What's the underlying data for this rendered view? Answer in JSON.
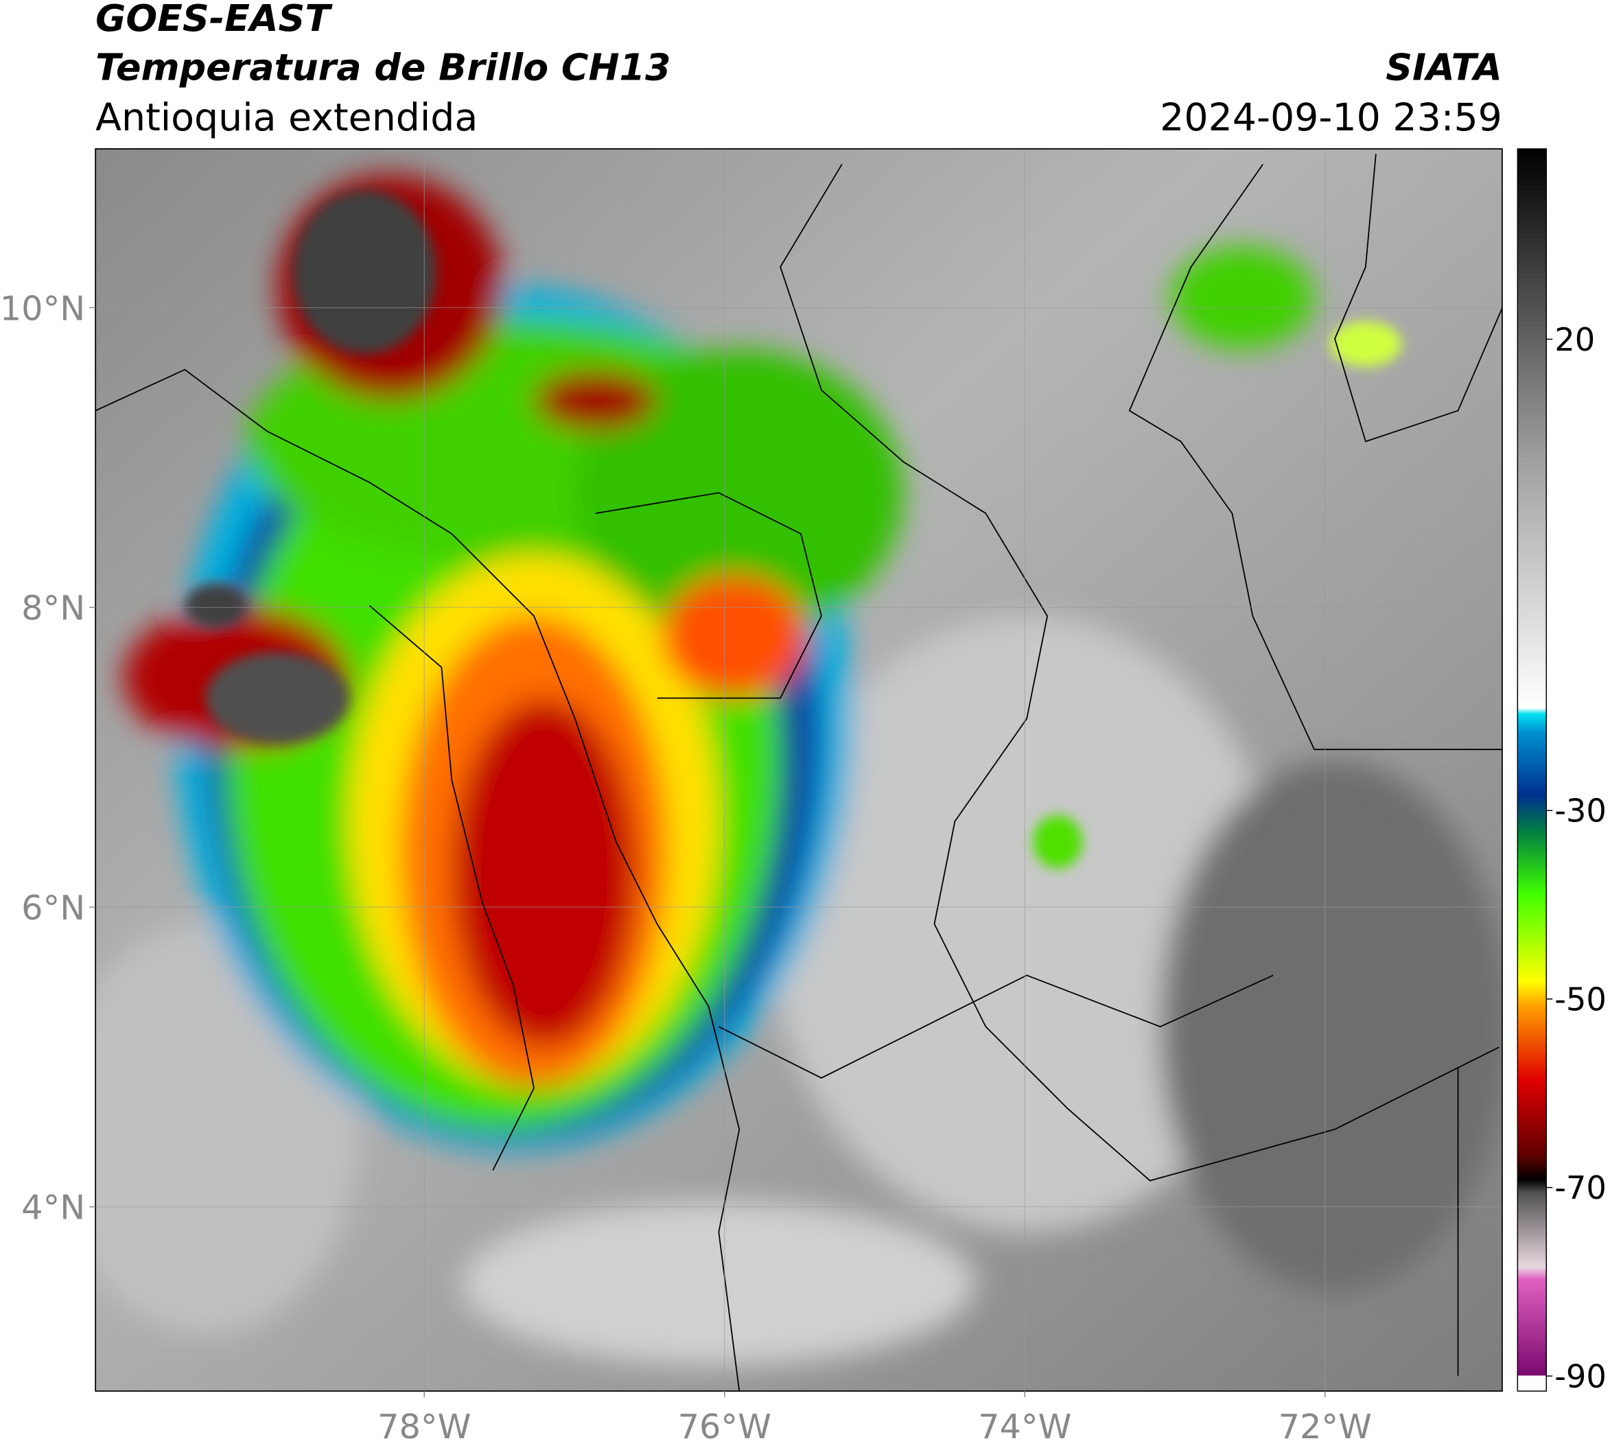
{
  "header": {
    "satellite": "GOES-EAST",
    "product": "Temperatura de Brillo CH13",
    "region": "Antioquia extendida",
    "source": "SIATA",
    "datetime": "2024-09-10 23:59"
  },
  "map": {
    "lonlim": [
      -80.19,
      -70.82
    ],
    "latlim": [
      2.77,
      11.06
    ],
    "lon_ticks": [
      {
        "value": -78,
        "label": "78°W"
      },
      {
        "value": -76,
        "label": "76°W"
      },
      {
        "value": -74,
        "label": "74°W"
      },
      {
        "value": -72,
        "label": "72°W"
      }
    ],
    "lat_ticks": [
      {
        "value": 4,
        "label": "4°N"
      },
      {
        "value": 6,
        "label": "6°N"
      },
      {
        "value": 8,
        "label": "8°N"
      },
      {
        "value": 10,
        "label": "10°N"
      }
    ]
  },
  "colorbar": {
    "lim": [
      -91.6,
      40.2
    ],
    "ticks": [
      20,
      -30,
      -50,
      -70,
      -90
    ]
  }
}
